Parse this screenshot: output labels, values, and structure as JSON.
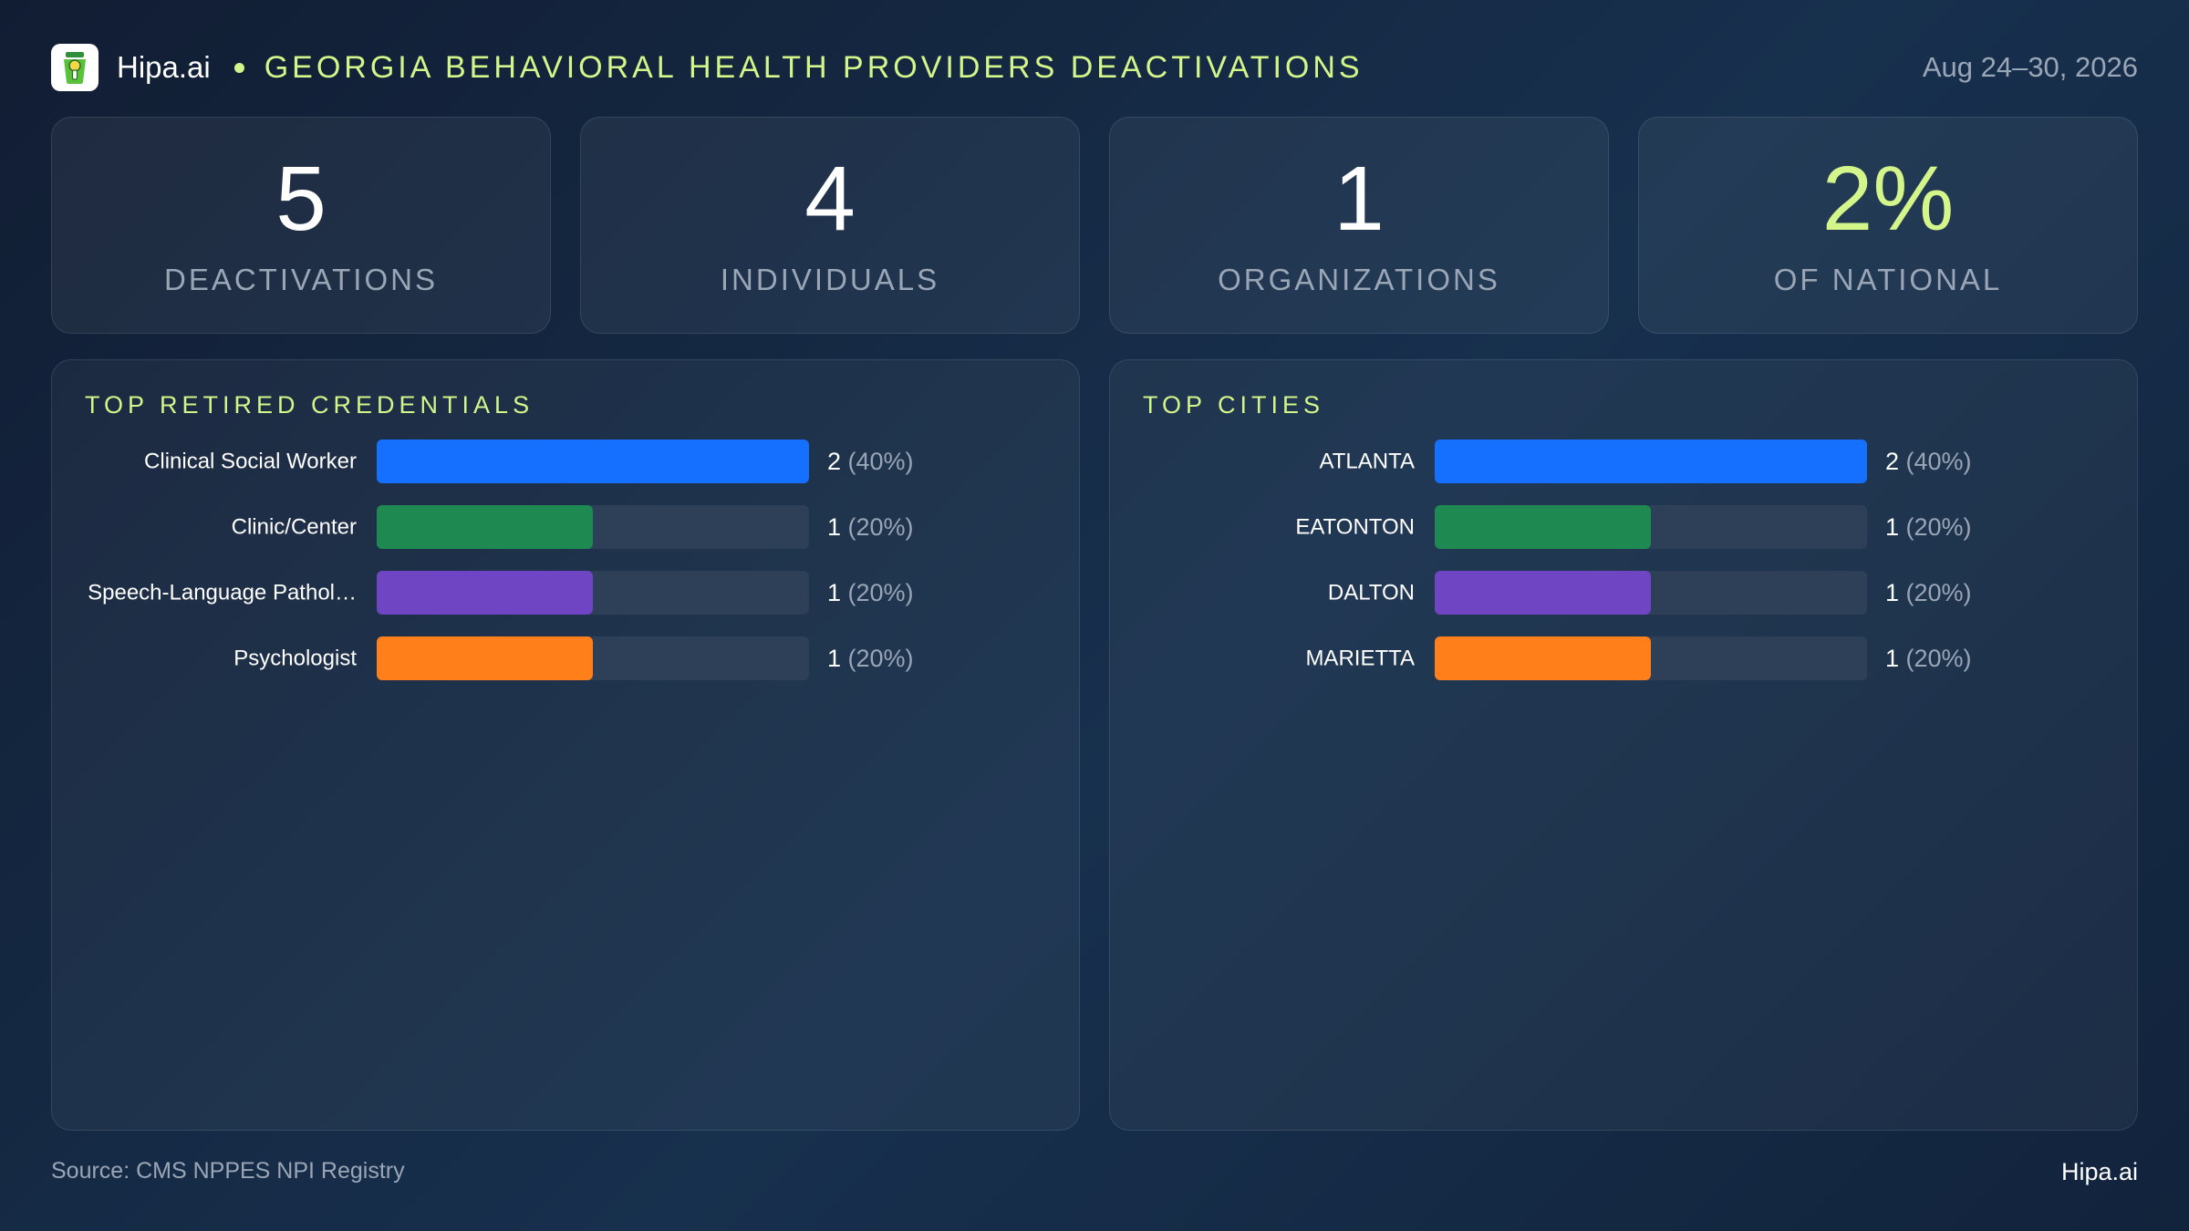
{
  "header": {
    "brand": "Hipa.ai",
    "title": "GEORGIA BEHAVIORAL HEALTH PROVIDERS DEACTIVATIONS",
    "date_range": "Aug 24–30, 2026"
  },
  "kpis": [
    {
      "value": "5",
      "label": "DEACTIVATIONS"
    },
    {
      "value": "4",
      "label": "INDIVIDUALS"
    },
    {
      "value": "1",
      "label": "ORGANIZATIONS"
    },
    {
      "value": "2%",
      "label": "OF NATIONAL"
    }
  ],
  "colors": {
    "accent": "#d4f58a",
    "bar_blue": "#1570ff",
    "bar_green": "#1e8a52",
    "bar_purple": "#6f45c4",
    "bar_orange": "#ff7f1a",
    "track": "#2d4058"
  },
  "chart_data": [
    {
      "type": "bar",
      "orientation": "horizontal",
      "title": "TOP RETIRED CREDENTIALS",
      "categories": [
        "Clinical Social Worker",
        "Clinic/Center",
        "Speech-Language Pathol…",
        "Psychologist"
      ],
      "values": [
        2,
        1,
        1,
        1
      ],
      "value_labels": [
        "2",
        "1",
        "1",
        "1"
      ],
      "percent_labels": [
        "(40%)",
        "(20%)",
        "(20%)",
        "(20%)"
      ],
      "xlim": [
        0,
        2
      ],
      "bar_colors": [
        "#1570ff",
        "#1e8a52",
        "#6f45c4",
        "#ff7f1a"
      ]
    },
    {
      "type": "bar",
      "orientation": "horizontal",
      "title": "TOP CITIES",
      "categories": [
        "ATLANTA",
        "EATONTON",
        "DALTON",
        "MARIETTA"
      ],
      "values": [
        2,
        1,
        1,
        1
      ],
      "value_labels": [
        "2",
        "1",
        "1",
        "1"
      ],
      "percent_labels": [
        "(40%)",
        "(20%)",
        "(20%)",
        "(20%)"
      ],
      "xlim": [
        0,
        2
      ],
      "bar_colors": [
        "#1570ff",
        "#1e8a52",
        "#6f45c4",
        "#ff7f1a"
      ]
    }
  ],
  "footer": {
    "source": "Source: CMS NPPES NPI Registry",
    "brand": "Hipa.ai"
  }
}
